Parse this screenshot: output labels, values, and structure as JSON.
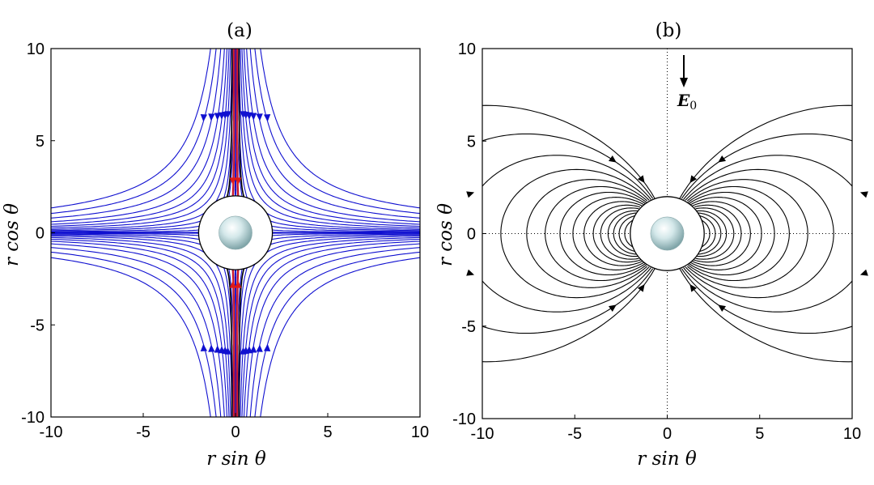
{
  "chart_data": [
    {
      "type": "streamlines",
      "title": "(a)",
      "xlabel": "r sin θ",
      "ylabel": "r cos θ",
      "xlim": [
        -10,
        10
      ],
      "ylim": [
        -10,
        10
      ],
      "xticks": [
        "-10",
        "-5",
        "0",
        "5",
        "10"
      ],
      "yticks": [
        "-10",
        "-5",
        "0",
        "5",
        "10"
      ],
      "drop_radius": 0.9,
      "circle_radius": 2.0,
      "flow_model": "hyperbolic straining flow xy = const",
      "blue_streamline_constants": [
        0.06,
        0.3,
        0.7,
        1.2,
        1.8,
        2.6,
        3.5,
        4.6,
        6,
        8,
        10.5,
        13.5
      ],
      "colors": {
        "outer": "#1010d0",
        "inner": "#e01818",
        "separatrix": "#000000"
      },
      "grid": "dotted zero lines"
    },
    {
      "type": "field_lines",
      "title": "(b)",
      "xlabel": "r sin θ",
      "ylabel": "r cos θ",
      "xlim": [
        -10,
        10
      ],
      "ylim": [
        -10,
        10
      ],
      "xticks": [
        "-10",
        "-5",
        "0",
        "5",
        "10"
      ],
      "yticks": [
        "-10",
        "-5",
        "0",
        "5",
        "10"
      ],
      "circle_radius": 2.0,
      "drop_radius": 0.9,
      "field_model": "dipole-like lobes, r = K sin^2(θ)",
      "lobe_sizes": [
        2.3,
        2.6,
        2.9,
        3.2,
        3.6,
        4.0,
        4.5,
        5.1,
        5.8,
        6.6,
        7.6,
        9.0,
        11.0,
        14.0,
        18.0
      ],
      "annotation": {
        "symbol": "E",
        "subscript": "0",
        "arrow": "down"
      },
      "colors": {
        "lines": "#000000"
      },
      "grid": "dotted zero lines"
    }
  ]
}
